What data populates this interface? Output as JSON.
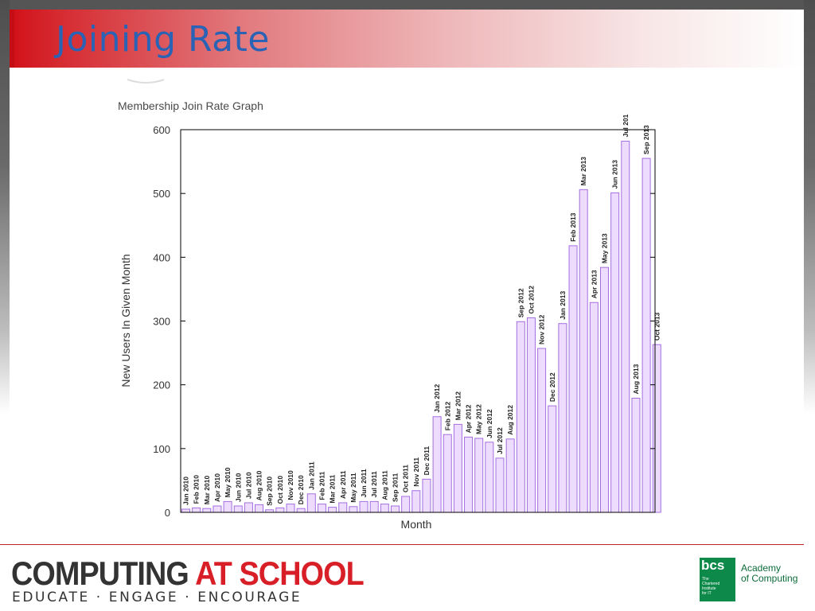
{
  "slide": {
    "title": "Joining Rate"
  },
  "footer": {
    "cas_word1": "COMPUTING",
    "cas_word2": "AT SCHOOL",
    "tagline": "EDUCATE · ENGAGE · ENCOURAGE",
    "bcs_logo": "bcs",
    "bcs_small": "The Chartered Institute for IT",
    "academy_line1": "Academy",
    "academy_line2": "of Computing"
  },
  "chart_data": {
    "type": "bar",
    "title": "Membership Join Rate Graph",
    "xlabel": "Month",
    "ylabel": "New Users In Given Month",
    "ylim": [
      0,
      600
    ],
    "yticks": [
      "0",
      "100",
      "200",
      "300",
      "400",
      "500",
      "600"
    ],
    "categories": [
      "Jan 2010",
      "Feb 2010",
      "Mar 2010",
      "Apr 2010",
      "May 2010",
      "Jun 2010",
      "Jul 2010",
      "Aug 2010",
      "Sep 2010",
      "Oct 2010",
      "Nov 2010",
      "Dec 2010",
      "Jan 2011",
      "Feb 2011",
      "Mar 2011",
      "Apr 2011",
      "May 2011",
      "Jun 2011",
      "Jul 2011",
      "Aug 2011",
      "Sep 2011",
      "Oct 2011",
      "Nov 2011",
      "Dec 2011",
      "Jan 2012",
      "Feb 2012",
      "Mar 2012",
      "Apr 2012",
      "May 2012",
      "Jun 2012",
      "Jul 2012",
      "Aug 2012",
      "Sep 2012",
      "Oct 2012",
      "Nov 2012",
      "Dec 2012",
      "Jan 2013",
      "Feb 2013",
      "Mar 2013",
      "Apr 2013",
      "May 2013",
      "Jun 2013",
      "Jul 201",
      "Aug 2013",
      "Sep 2013",
      "Oct 2013"
    ],
    "values": [
      5,
      7,
      6,
      10,
      17,
      10,
      15,
      12,
      4,
      7,
      13,
      6,
      29,
      13,
      8,
      15,
      9,
      17,
      17,
      13,
      10,
      25,
      34,
      52,
      150,
      122,
      138,
      118,
      116,
      110,
      85,
      115,
      299,
      305,
      257,
      167,
      296,
      418,
      506,
      329,
      384,
      501,
      582,
      179,
      555,
      263
    ],
    "colors": {
      "bar_fill": "#eedcff",
      "bar_stroke": "#a46ee0",
      "axis": "#000000",
      "text": "#333333"
    }
  }
}
